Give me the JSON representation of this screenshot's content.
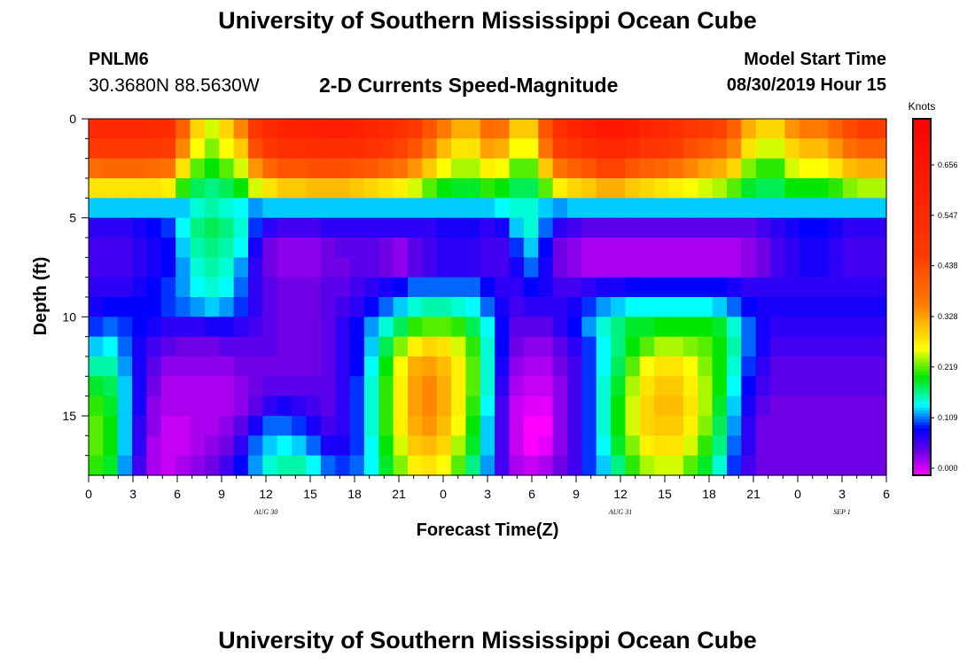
{
  "header": {
    "title": "University of Southern Mississippi Ocean Cube",
    "station_id": "PNLM6",
    "station_location": "30.3680N 88.5630W",
    "plot_title": "2-D Currents Speed-Magnitude",
    "model_start_label": "Model Start Time",
    "model_start_value": "08/30/2019 Hour 15"
  },
  "footer": {
    "title": "University of Southern Mississippi Ocean Cube"
  },
  "chart_data": {
    "type": "heatmap",
    "xlabel": "Forecast Time(Z)",
    "ylabel": "Depth (ft)",
    "x_tick_labels": [
      "0",
      "3",
      "6",
      "9",
      "12",
      "15",
      "18",
      "21",
      "0",
      "3",
      "6",
      "9",
      "12",
      "15",
      "18",
      "21",
      "0",
      "3",
      "6"
    ],
    "date_labels": [
      {
        "label": "AUG 30",
        "tick_index": 4
      },
      {
        "label": "AUG 31",
        "tick_index": 12
      },
      {
        "label": "SEP 1",
        "tick_index": 17
      }
    ],
    "y_ticks": [
      0,
      5,
      10,
      15
    ],
    "ylim": [
      0,
      18
    ],
    "y_inverted": true,
    "colorbar": {
      "title": "Knots",
      "tick_labels": [
        "0.000",
        "0.109",
        "0.219",
        "0.328",
        "0.438",
        "0.547",
        "0.656"
      ],
      "range": [
        0,
        0.76
      ]
    },
    "hours": [
      0,
      1,
      2,
      3,
      4,
      5,
      6,
      7,
      8,
      9,
      10,
      11,
      12,
      13,
      14,
      15,
      16,
      17,
      18,
      19,
      20,
      21,
      22,
      23,
      24,
      25,
      26,
      27,
      28,
      29,
      30,
      31,
      32,
      33,
      34,
      35,
      36,
      37,
      38,
      39,
      40,
      41,
      42,
      43,
      44,
      45,
      46,
      47,
      48,
      49,
      50,
      51,
      52,
      53,
      54
    ],
    "depths_ft": [
      0.5,
      1.5,
      2.5,
      3.5,
      4.5,
      5.5,
      6.5,
      7.5,
      8.5,
      9.5,
      10.5,
      11.5,
      12.5,
      13.5,
      14.5,
      15.5,
      16.5,
      17.5
    ],
    "speed_knots": [
      [
        0.55,
        0.56,
        0.56,
        0.56,
        0.55,
        0.54,
        0.41,
        0.3,
        0.26,
        0.3,
        0.36,
        0.5,
        0.56,
        0.59,
        0.6,
        0.6,
        0.61,
        0.61,
        0.6,
        0.58,
        0.56,
        0.53,
        0.49,
        0.43,
        0.37,
        0.33,
        0.33,
        0.39,
        0.38,
        0.31,
        0.31,
        0.43,
        0.53,
        0.58,
        0.61,
        0.64,
        0.64,
        0.61,
        0.58,
        0.56,
        0.53,
        0.5,
        0.48,
        0.46,
        0.41,
        0.33,
        0.3,
        0.3,
        0.35,
        0.37,
        0.37,
        0.41,
        0.45,
        0.47,
        0.47
      ],
      [
        0.48,
        0.49,
        0.49,
        0.49,
        0.48,
        0.47,
        0.36,
        0.27,
        0.24,
        0.27,
        0.31,
        0.44,
        0.5,
        0.53,
        0.53,
        0.54,
        0.54,
        0.54,
        0.54,
        0.52,
        0.5,
        0.46,
        0.43,
        0.37,
        0.32,
        0.29,
        0.29,
        0.34,
        0.33,
        0.27,
        0.27,
        0.38,
        0.47,
        0.51,
        0.54,
        0.57,
        0.57,
        0.54,
        0.51,
        0.5,
        0.47,
        0.44,
        0.42,
        0.4,
        0.36,
        0.29,
        0.26,
        0.26,
        0.3,
        0.32,
        0.32,
        0.35,
        0.39,
        0.41,
        0.41
      ],
      [
        0.39,
        0.4,
        0.4,
        0.4,
        0.39,
        0.38,
        0.29,
        0.23,
        0.21,
        0.23,
        0.26,
        0.35,
        0.4,
        0.43,
        0.43,
        0.44,
        0.44,
        0.44,
        0.43,
        0.42,
        0.4,
        0.38,
        0.35,
        0.31,
        0.27,
        0.25,
        0.25,
        0.28,
        0.27,
        0.23,
        0.23,
        0.31,
        0.38,
        0.41,
        0.43,
        0.46,
        0.46,
        0.43,
        0.41,
        0.4,
        0.38,
        0.36,
        0.34,
        0.33,
        0.3,
        0.24,
        0.22,
        0.22,
        0.26,
        0.27,
        0.27,
        0.29,
        0.32,
        0.33,
        0.33
      ],
      [
        0.29,
        0.29,
        0.29,
        0.29,
        0.29,
        0.28,
        0.22,
        0.19,
        0.18,
        0.19,
        0.21,
        0.26,
        0.29,
        0.31,
        0.31,
        0.32,
        0.32,
        0.32,
        0.31,
        0.3,
        0.29,
        0.28,
        0.26,
        0.23,
        0.21,
        0.2,
        0.2,
        0.22,
        0.21,
        0.19,
        0.19,
        0.23,
        0.28,
        0.3,
        0.31,
        0.33,
        0.33,
        0.31,
        0.3,
        0.29,
        0.28,
        0.27,
        0.26,
        0.25,
        0.23,
        0.2,
        0.19,
        0.19,
        0.21,
        0.21,
        0.21,
        0.22,
        0.24,
        0.25,
        0.25
      ],
      [
        0.14,
        0.14,
        0.14,
        0.14,
        0.14,
        0.14,
        0.14,
        0.16,
        0.17,
        0.16,
        0.15,
        0.13,
        0.14,
        0.14,
        0.14,
        0.14,
        0.14,
        0.14,
        0.14,
        0.14,
        0.14,
        0.14,
        0.14,
        0.14,
        0.14,
        0.14,
        0.14,
        0.14,
        0.15,
        0.16,
        0.16,
        0.14,
        0.13,
        0.14,
        0.14,
        0.14,
        0.14,
        0.14,
        0.14,
        0.14,
        0.14,
        0.14,
        0.14,
        0.14,
        0.14,
        0.14,
        0.14,
        0.14,
        0.14,
        0.14,
        0.14,
        0.14,
        0.14,
        0.14,
        0.14
      ],
      [
        0.08,
        0.08,
        0.08,
        0.09,
        0.1,
        0.11,
        0.15,
        0.18,
        0.19,
        0.18,
        0.16,
        0.11,
        0.08,
        0.07,
        0.07,
        0.07,
        0.08,
        0.08,
        0.08,
        0.08,
        0.08,
        0.08,
        0.08,
        0.08,
        0.09,
        0.09,
        0.09,
        0.08,
        0.09,
        0.14,
        0.16,
        0.12,
        0.08,
        0.07,
        0.06,
        0.06,
        0.06,
        0.06,
        0.06,
        0.06,
        0.06,
        0.06,
        0.06,
        0.06,
        0.06,
        0.06,
        0.07,
        0.08,
        0.09,
        0.1,
        0.1,
        0.09,
        0.08,
        0.08,
        0.08
      ],
      [
        0.07,
        0.07,
        0.07,
        0.08,
        0.09,
        0.1,
        0.14,
        0.17,
        0.18,
        0.17,
        0.15,
        0.09,
        0.05,
        0.04,
        0.04,
        0.04,
        0.05,
        0.06,
        0.06,
        0.06,
        0.05,
        0.04,
        0.06,
        0.07,
        0.08,
        0.08,
        0.08,
        0.07,
        0.07,
        0.11,
        0.14,
        0.1,
        0.05,
        0.04,
        0.03,
        0.03,
        0.03,
        0.03,
        0.03,
        0.03,
        0.03,
        0.03,
        0.03,
        0.03,
        0.03,
        0.04,
        0.05,
        0.07,
        0.08,
        0.09,
        0.09,
        0.08,
        0.07,
        0.07,
        0.07
      ],
      [
        0.07,
        0.07,
        0.07,
        0.08,
        0.09,
        0.1,
        0.13,
        0.16,
        0.17,
        0.16,
        0.13,
        0.08,
        0.05,
        0.04,
        0.04,
        0.04,
        0.05,
        0.05,
        0.06,
        0.06,
        0.05,
        0.04,
        0.06,
        0.07,
        0.08,
        0.08,
        0.08,
        0.07,
        0.07,
        0.09,
        0.12,
        0.09,
        0.05,
        0.04,
        0.03,
        0.03,
        0.03,
        0.03,
        0.03,
        0.03,
        0.03,
        0.03,
        0.03,
        0.03,
        0.03,
        0.04,
        0.05,
        0.07,
        0.08,
        0.09,
        0.09,
        0.08,
        0.07,
        0.07,
        0.07
      ],
      [
        0.08,
        0.08,
        0.08,
        0.09,
        0.1,
        0.11,
        0.13,
        0.15,
        0.16,
        0.15,
        0.12,
        0.08,
        0.06,
        0.05,
        0.05,
        0.05,
        0.06,
        0.06,
        0.07,
        0.08,
        0.09,
        0.1,
        0.12,
        0.12,
        0.12,
        0.12,
        0.12,
        0.1,
        0.08,
        0.08,
        0.1,
        0.09,
        0.07,
        0.07,
        0.08,
        0.09,
        0.09,
        0.1,
        0.1,
        0.1,
        0.1,
        0.1,
        0.1,
        0.1,
        0.09,
        0.08,
        0.08,
        0.08,
        0.08,
        0.08,
        0.08,
        0.08,
        0.08,
        0.08,
        0.08
      ],
      [
        0.09,
        0.1,
        0.1,
        0.1,
        0.1,
        0.11,
        0.12,
        0.13,
        0.14,
        0.13,
        0.11,
        0.08,
        0.06,
        0.05,
        0.05,
        0.05,
        0.06,
        0.07,
        0.08,
        0.1,
        0.12,
        0.14,
        0.16,
        0.17,
        0.17,
        0.16,
        0.15,
        0.12,
        0.09,
        0.07,
        0.08,
        0.08,
        0.08,
        0.09,
        0.11,
        0.13,
        0.14,
        0.15,
        0.15,
        0.15,
        0.15,
        0.15,
        0.15,
        0.14,
        0.12,
        0.1,
        0.09,
        0.09,
        0.09,
        0.09,
        0.09,
        0.09,
        0.09,
        0.09,
        0.09
      ],
      [
        0.11,
        0.12,
        0.11,
        0.1,
        0.09,
        0.08,
        0.08,
        0.08,
        0.09,
        0.09,
        0.08,
        0.07,
        0.06,
        0.05,
        0.05,
        0.05,
        0.06,
        0.08,
        0.1,
        0.13,
        0.16,
        0.19,
        0.22,
        0.23,
        0.23,
        0.22,
        0.19,
        0.15,
        0.1,
        0.06,
        0.06,
        0.06,
        0.08,
        0.1,
        0.13,
        0.16,
        0.18,
        0.2,
        0.2,
        0.21,
        0.21,
        0.21,
        0.21,
        0.2,
        0.16,
        0.12,
        0.09,
        0.08,
        0.08,
        0.08,
        0.08,
        0.08,
        0.08,
        0.08,
        0.08
      ],
      [
        0.14,
        0.15,
        0.12,
        0.09,
        0.07,
        0.06,
        0.05,
        0.05,
        0.05,
        0.06,
        0.06,
        0.06,
        0.06,
        0.05,
        0.05,
        0.05,
        0.06,
        0.08,
        0.1,
        0.14,
        0.19,
        0.24,
        0.28,
        0.3,
        0.29,
        0.26,
        0.22,
        0.16,
        0.1,
        0.05,
        0.04,
        0.04,
        0.06,
        0.08,
        0.11,
        0.15,
        0.18,
        0.21,
        0.23,
        0.25,
        0.25,
        0.24,
        0.23,
        0.21,
        0.17,
        0.12,
        0.09,
        0.07,
        0.07,
        0.07,
        0.07,
        0.07,
        0.07,
        0.07,
        0.07
      ],
      [
        0.17,
        0.17,
        0.13,
        0.09,
        0.06,
        0.04,
        0.04,
        0.04,
        0.04,
        0.04,
        0.05,
        0.05,
        0.05,
        0.05,
        0.05,
        0.05,
        0.06,
        0.08,
        0.1,
        0.15,
        0.21,
        0.27,
        0.33,
        0.34,
        0.32,
        0.28,
        0.23,
        0.16,
        0.09,
        0.04,
        0.03,
        0.03,
        0.05,
        0.07,
        0.11,
        0.15,
        0.19,
        0.23,
        0.27,
        0.29,
        0.29,
        0.27,
        0.24,
        0.21,
        0.16,
        0.11,
        0.08,
        0.06,
        0.06,
        0.06,
        0.06,
        0.06,
        0.06,
        0.06,
        0.06
      ],
      [
        0.2,
        0.19,
        0.14,
        0.09,
        0.05,
        0.03,
        0.03,
        0.03,
        0.03,
        0.03,
        0.04,
        0.05,
        0.06,
        0.06,
        0.06,
        0.06,
        0.06,
        0.08,
        0.11,
        0.16,
        0.22,
        0.28,
        0.34,
        0.36,
        0.33,
        0.28,
        0.23,
        0.16,
        0.08,
        0.03,
        0.02,
        0.02,
        0.04,
        0.07,
        0.11,
        0.16,
        0.2,
        0.25,
        0.29,
        0.31,
        0.31,
        0.28,
        0.25,
        0.21,
        0.15,
        0.1,
        0.07,
        0.06,
        0.06,
        0.06,
        0.06,
        0.06,
        0.06,
        0.06,
        0.06
      ],
      [
        0.22,
        0.2,
        0.14,
        0.09,
        0.04,
        0.03,
        0.03,
        0.03,
        0.03,
        0.03,
        0.04,
        0.06,
        0.08,
        0.09,
        0.08,
        0.07,
        0.06,
        0.08,
        0.11,
        0.16,
        0.22,
        0.28,
        0.34,
        0.36,
        0.33,
        0.28,
        0.22,
        0.15,
        0.07,
        0.02,
        0.01,
        0.01,
        0.04,
        0.07,
        0.11,
        0.16,
        0.21,
        0.26,
        0.3,
        0.32,
        0.32,
        0.29,
        0.25,
        0.2,
        0.14,
        0.09,
        0.06,
        0.05,
        0.05,
        0.05,
        0.05,
        0.05,
        0.05,
        0.05,
        0.05
      ],
      [
        0.23,
        0.21,
        0.14,
        0.08,
        0.04,
        0.02,
        0.02,
        0.03,
        0.03,
        0.04,
        0.06,
        0.09,
        0.12,
        0.12,
        0.11,
        0.09,
        0.07,
        0.08,
        0.11,
        0.16,
        0.22,
        0.28,
        0.33,
        0.35,
        0.32,
        0.27,
        0.21,
        0.14,
        0.07,
        0.02,
        0.0,
        0.0,
        0.04,
        0.07,
        0.11,
        0.16,
        0.21,
        0.26,
        0.3,
        0.31,
        0.31,
        0.28,
        0.24,
        0.19,
        0.13,
        0.08,
        0.05,
        0.05,
        0.05,
        0.05,
        0.05,
        0.05,
        0.05,
        0.05,
        0.05
      ],
      [
        0.23,
        0.21,
        0.14,
        0.08,
        0.03,
        0.02,
        0.02,
        0.03,
        0.04,
        0.05,
        0.08,
        0.12,
        0.14,
        0.15,
        0.14,
        0.12,
        0.09,
        0.09,
        0.11,
        0.15,
        0.21,
        0.26,
        0.31,
        0.32,
        0.3,
        0.25,
        0.2,
        0.14,
        0.07,
        0.02,
        0.0,
        0.01,
        0.04,
        0.07,
        0.11,
        0.15,
        0.2,
        0.24,
        0.28,
        0.29,
        0.29,
        0.26,
        0.22,
        0.18,
        0.12,
        0.08,
        0.05,
        0.05,
        0.05,
        0.05,
        0.05,
        0.05,
        0.05,
        0.05,
        0.05
      ],
      [
        0.22,
        0.2,
        0.13,
        0.07,
        0.03,
        0.02,
        0.03,
        0.04,
        0.05,
        0.07,
        0.1,
        0.13,
        0.16,
        0.17,
        0.17,
        0.15,
        0.12,
        0.11,
        0.12,
        0.15,
        0.2,
        0.24,
        0.28,
        0.29,
        0.27,
        0.23,
        0.18,
        0.13,
        0.07,
        0.03,
        0.02,
        0.03,
        0.05,
        0.07,
        0.11,
        0.14,
        0.18,
        0.22,
        0.25,
        0.26,
        0.26,
        0.23,
        0.2,
        0.16,
        0.11,
        0.07,
        0.05,
        0.05,
        0.05,
        0.05,
        0.05,
        0.05,
        0.05,
        0.05,
        0.05
      ]
    ]
  }
}
